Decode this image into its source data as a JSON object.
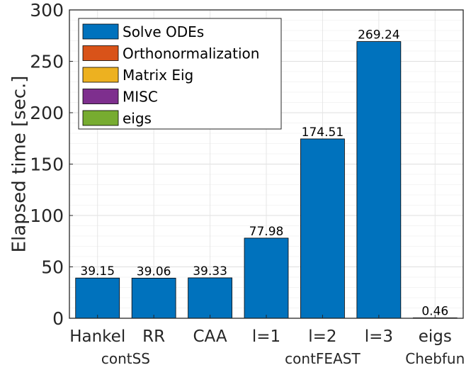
{
  "chart_data": {
    "type": "bar",
    "stacked": true,
    "categories": [
      "Hankel",
      "RR",
      "CAA",
      "l=1",
      "l=2",
      "l=3",
      "eigs"
    ],
    "groups": [
      {
        "label": "contSS",
        "categories": [
          "Hankel",
          "RR"
        ]
      },
      {
        "label": "contFEAST",
        "categories": [
          "l=1",
          "l=2",
          "l=3"
        ]
      },
      {
        "label": "Chebfun",
        "categories": [
          "eigs"
        ]
      }
    ],
    "series": [
      {
        "name": "Solve ODEs",
        "color": "#0072BD",
        "values": [
          39.15,
          39.06,
          39.33,
          77.98,
          174.51,
          269.24,
          0
        ]
      },
      {
        "name": "Orthonormalization",
        "color": "#D95319",
        "values": [
          0,
          0,
          0,
          0,
          0,
          0,
          0
        ]
      },
      {
        "name": "Matrix Eig",
        "color": "#EDB120",
        "values": [
          0,
          0,
          0,
          0,
          0,
          0,
          0
        ]
      },
      {
        "name": "MISC",
        "color": "#7E2F8E",
        "values": [
          0,
          0,
          0,
          0,
          0,
          0,
          0
        ]
      },
      {
        "name": "eigs",
        "color": "#77AC30",
        "values": [
          0,
          0,
          0,
          0,
          0,
          0,
          0.46
        ]
      }
    ],
    "totals": [
      39.15,
      39.06,
      39.33,
      77.98,
      174.51,
      269.24,
      0.46
    ],
    "total_labels": [
      "39.15",
      "39.06",
      "39.33",
      "77.98",
      "174.51",
      "269.24",
      "0.46"
    ],
    "title": "",
    "xlabel": "",
    "ylabel": "Elapsed time [sec.]",
    "ylim": [
      0,
      300
    ],
    "yticks": [
      0,
      50,
      100,
      150,
      200,
      250,
      300
    ],
    "grid": true,
    "legend_position": "top-left"
  }
}
